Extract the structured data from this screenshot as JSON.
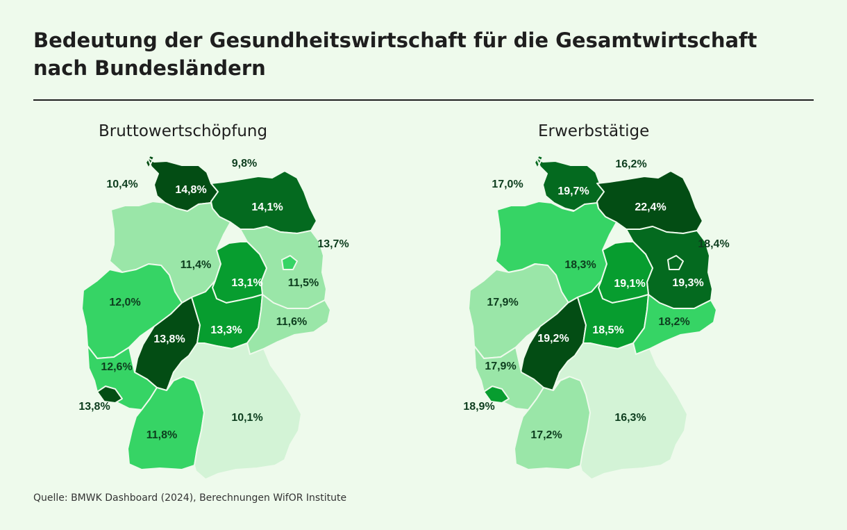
{
  "title": "Bedeutung der Gesundheitswirtschaft für die Gesamtwirtschaft nach Bundesländern",
  "source": "Quelle: BMWK Dashboard (2024), Berechnungen WifOR Institute",
  "colors": {
    "background": "#eefaec",
    "level1": "#d3f3d6",
    "level2": "#9ae6a8",
    "level3": "#36d465",
    "level4": "#079d2f",
    "level5": "#046a1f",
    "level6": "#034d14"
  },
  "maps": [
    {
      "title": "Bruttowertschöpfung",
      "labels": {
        "SH": "14,8%",
        "HH": "10,4%",
        "MV": "14,1%",
        "HB": "9,8%",
        "NI": "11,4%",
        "BE": "13,7%",
        "ST": "13,1%",
        "BB": "11,5%",
        "NW": "12,0%",
        "TH": "13,3%",
        "SN": "11,6%",
        "HE": "13,8%",
        "RP": "12,6%",
        "SL": "13,8%",
        "BW": "11,8%",
        "BY": "10,1%"
      },
      "shades": {
        "SH": "level6",
        "MV": "level5",
        "NI": "level2",
        "ST": "level4",
        "BB": "level2",
        "BE": "level3",
        "NW": "level3",
        "TH": "level4",
        "SN": "level2",
        "HE": "level6",
        "RP": "level3",
        "SL": "level6",
        "BW": "level3",
        "BY": "level1"
      }
    },
    {
      "title": "Erwerbstätige",
      "labels": {
        "SH": "19,7%",
        "HH": "17,0%",
        "MV": "22,4%",
        "HB": "16,2%",
        "NI": "18,3%",
        "BE": "18,4%",
        "ST": "19,1%",
        "BB": "19,3%",
        "NW": "17,9%",
        "TH": "18,5%",
        "SN": "18,2%",
        "HE": "19,2%",
        "RP": "17,9%",
        "SL": "18,9%",
        "BW": "17,2%",
        "BY": "16,3%"
      },
      "shades": {
        "SH": "level5",
        "MV": "level6",
        "NI": "level3",
        "ST": "level4",
        "BB": "level5",
        "BE": "level5",
        "NW": "level2",
        "TH": "level4",
        "SN": "level3",
        "HE": "level6",
        "RP": "level2",
        "SL": "level4",
        "BW": "level2",
        "BY": "level1"
      }
    }
  ]
}
